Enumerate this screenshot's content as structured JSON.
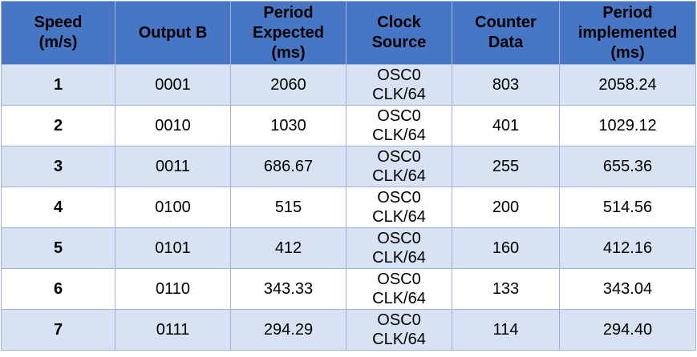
{
  "table": {
    "headers": [
      [
        "Speed",
        "(m/s)"
      ],
      [
        "Output B"
      ],
      [
        "Period",
        "Expected",
        "(ms)"
      ],
      [
        "Clock",
        "Source"
      ],
      [
        "Counter",
        "Data"
      ],
      [
        "Period",
        "implemented",
        "(ms)"
      ]
    ],
    "rows": [
      {
        "speed": "1",
        "output_b": "0001",
        "period_expected": "2060",
        "clock_source": [
          "OSC0",
          "CLK/64"
        ],
        "counter_data": "803",
        "period_implemented": "2058.24"
      },
      {
        "speed": "2",
        "output_b": "0010",
        "period_expected": "1030",
        "clock_source": [
          "OSC0",
          "CLK/64"
        ],
        "counter_data": "401",
        "period_implemented": "1029.12"
      },
      {
        "speed": "3",
        "output_b": "0011",
        "period_expected": "686.67",
        "clock_source": [
          "OSC0",
          "CLK/64"
        ],
        "counter_data": "255",
        "period_implemented": "655.36"
      },
      {
        "speed": "4",
        "output_b": "0100",
        "period_expected": "515",
        "clock_source": [
          "OSC0",
          "CLK/64"
        ],
        "counter_data": "200",
        "period_implemented": "514.56"
      },
      {
        "speed": "5",
        "output_b": "0101",
        "period_expected": "412",
        "clock_source": [
          "OSC0",
          "CLK/64"
        ],
        "counter_data": "160",
        "period_implemented": "412.16"
      },
      {
        "speed": "6",
        "output_b": "0110",
        "period_expected": "343.33",
        "clock_source": [
          "OSC0",
          "CLK/64"
        ],
        "counter_data": "133",
        "period_implemented": "343.04"
      },
      {
        "speed": "7",
        "output_b": "0111",
        "period_expected": "294.29",
        "clock_source": [
          "OSC0",
          "CLK/64"
        ],
        "counter_data": "114",
        "period_implemented": "294.40"
      }
    ]
  },
  "colors": {
    "header_bg": "#4676c4",
    "row_alt_bg": "#d9e2f3",
    "row_bg": "#ffffff",
    "border": "#9db3de"
  }
}
